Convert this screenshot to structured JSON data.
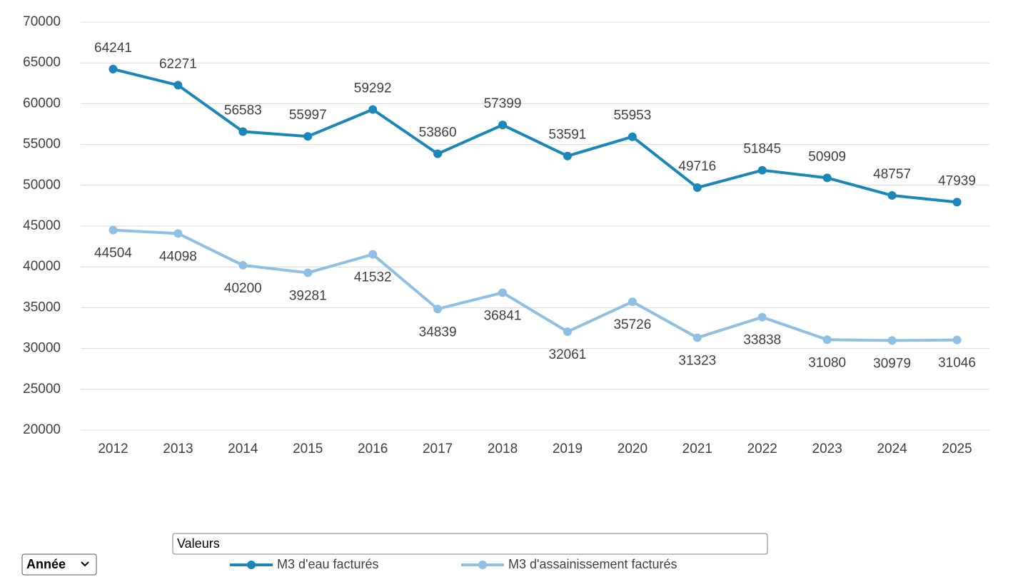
{
  "chart_data": {
    "type": "line",
    "categories": [
      "2012",
      "2013",
      "2014",
      "2015",
      "2016",
      "2017",
      "2018",
      "2019",
      "2020",
      "2021",
      "2022",
      "2023",
      "2024",
      "2025"
    ],
    "series": [
      {
        "name": "M3 d'eau facturés",
        "color": "#1a87b8",
        "values": [
          64241,
          62271,
          56583,
          55997,
          59292,
          53860,
          57399,
          53591,
          55953,
          49716,
          51845,
          50909,
          48757,
          47939
        ]
      },
      {
        "name": "M3 d'assainissement facturés",
        "color": "#8fc0e4",
        "values": [
          44504,
          44098,
          40200,
          39281,
          41532,
          34839,
          36841,
          32061,
          35726,
          31323,
          33838,
          31080,
          30979,
          31046
        ]
      }
    ],
    "ylim": [
      20000,
      70000
    ],
    "yticks": [
      20000,
      25000,
      30000,
      35000,
      40000,
      45000,
      50000,
      55000,
      60000,
      65000,
      70000
    ],
    "grid": true,
    "legend": "bottom",
    "field_buttons": {
      "values": "Valeurs",
      "axis": "Année"
    }
  }
}
